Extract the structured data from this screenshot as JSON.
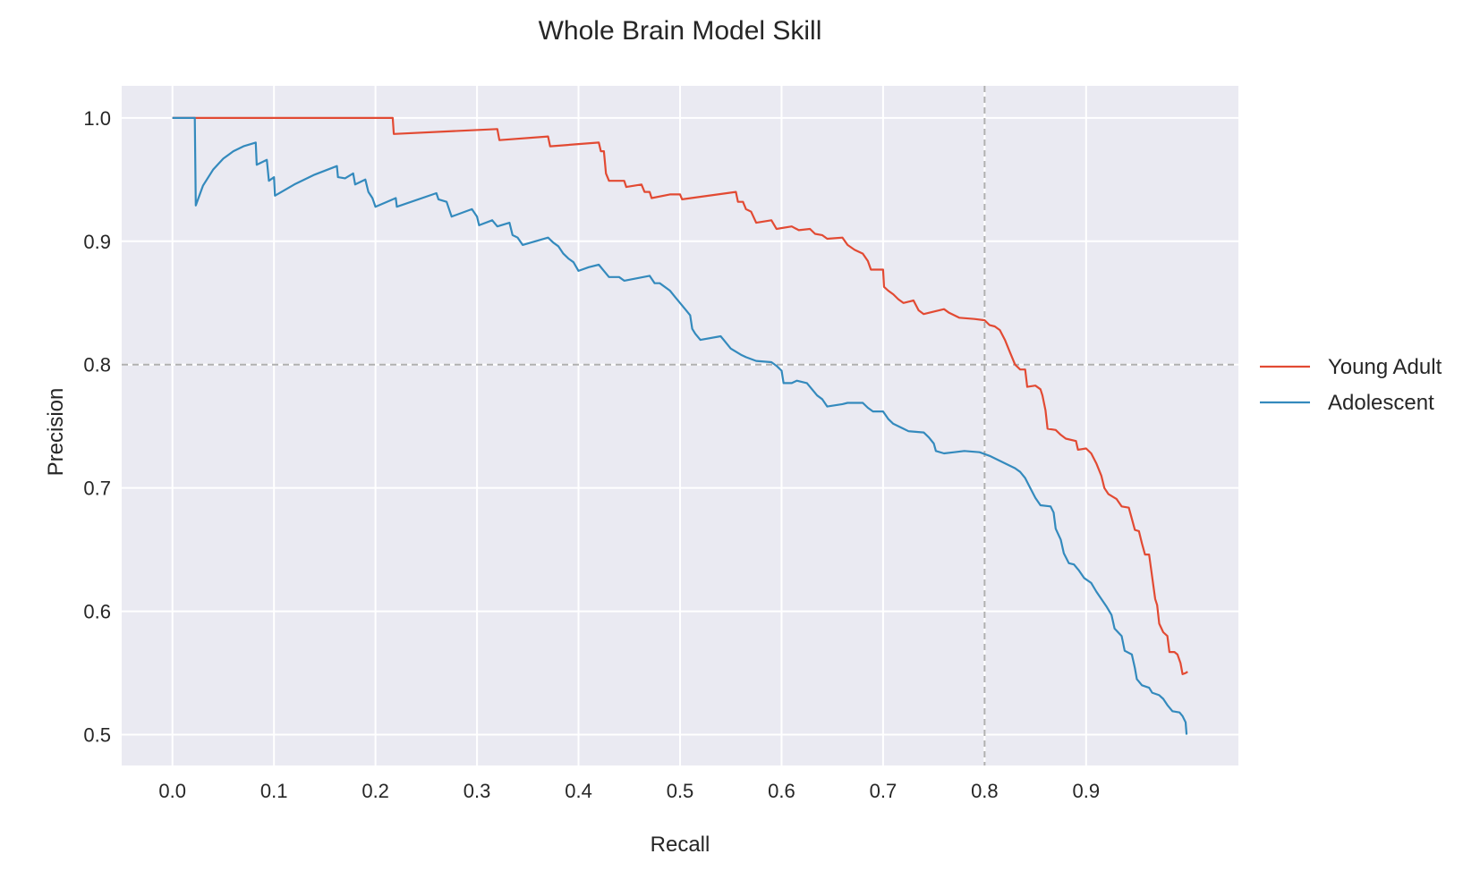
{
  "chart_data": {
    "type": "line",
    "title": "Whole Brain Model Skill",
    "xlabel": "Recall",
    "ylabel": "Precision",
    "xlim": [
      -0.05,
      1.05
    ],
    "ylim": [
      0.475,
      1.026
    ],
    "xticks": [
      0.0,
      0.1,
      0.2,
      0.3,
      0.4,
      0.5,
      0.6,
      0.7,
      0.8,
      0.9
    ],
    "xtick_labels": [
      "0.0",
      "0.1",
      "0.2",
      "0.3",
      "0.4",
      "0.5",
      "0.6",
      "0.7",
      "0.8",
      "0.9"
    ],
    "yticks": [
      0.5,
      0.6,
      0.7,
      0.8,
      0.9,
      1.0
    ],
    "ytick_labels": [
      "0.5",
      "0.6",
      "0.7",
      "0.8",
      "0.9",
      "1.0"
    ],
    "grid": true,
    "background": "#eaeaf2",
    "legend_position": "right",
    "reference_lines": [
      {
        "axis": "y",
        "value": 0.8,
        "style": "dashed",
        "color": "#b0b0b0"
      },
      {
        "axis": "x",
        "value": 0.8,
        "style": "dashed",
        "color": "#b0b0b0"
      }
    ],
    "series": [
      {
        "name": "Young Adult",
        "color": "#e24a33",
        "points": [
          [
            0.0,
            1.0
          ],
          [
            0.217,
            1.0
          ],
          [
            0.218,
            0.987
          ],
          [
            0.32,
            0.991
          ],
          [
            0.322,
            0.982
          ],
          [
            0.37,
            0.985
          ],
          [
            0.372,
            0.977
          ],
          [
            0.42,
            0.98
          ],
          [
            0.422,
            0.973
          ],
          [
            0.425,
            0.973
          ],
          [
            0.427,
            0.955
          ],
          [
            0.43,
            0.949
          ],
          [
            0.445,
            0.949
          ],
          [
            0.447,
            0.944
          ],
          [
            0.462,
            0.946
          ],
          [
            0.465,
            0.94
          ],
          [
            0.47,
            0.94
          ],
          [
            0.472,
            0.935
          ],
          [
            0.49,
            0.938
          ],
          [
            0.5,
            0.938
          ],
          [
            0.502,
            0.934
          ],
          [
            0.555,
            0.94
          ],
          [
            0.557,
            0.932
          ],
          [
            0.562,
            0.932
          ],
          [
            0.565,
            0.926
          ],
          [
            0.57,
            0.924
          ],
          [
            0.575,
            0.915
          ],
          [
            0.59,
            0.917
          ],
          [
            0.595,
            0.91
          ],
          [
            0.61,
            0.912
          ],
          [
            0.617,
            0.909
          ],
          [
            0.628,
            0.91
          ],
          [
            0.633,
            0.906
          ],
          [
            0.64,
            0.905
          ],
          [
            0.645,
            0.902
          ],
          [
            0.66,
            0.903
          ],
          [
            0.665,
            0.897
          ],
          [
            0.672,
            0.893
          ],
          [
            0.68,
            0.89
          ],
          [
            0.685,
            0.884
          ],
          [
            0.688,
            0.877
          ],
          [
            0.7,
            0.877
          ],
          [
            0.701,
            0.863
          ],
          [
            0.705,
            0.86
          ],
          [
            0.71,
            0.857
          ],
          [
            0.715,
            0.853
          ],
          [
            0.72,
            0.85
          ],
          [
            0.73,
            0.852
          ],
          [
            0.735,
            0.844
          ],
          [
            0.74,
            0.841
          ],
          [
            0.76,
            0.845
          ],
          [
            0.765,
            0.842
          ],
          [
            0.775,
            0.838
          ],
          [
            0.79,
            0.837
          ],
          [
            0.8,
            0.836
          ],
          [
            0.805,
            0.832
          ],
          [
            0.81,
            0.831
          ],
          [
            0.815,
            0.828
          ],
          [
            0.82,
            0.82
          ],
          [
            0.825,
            0.81
          ],
          [
            0.83,
            0.8
          ],
          [
            0.835,
            0.796
          ],
          [
            0.84,
            0.796
          ],
          [
            0.842,
            0.782
          ],
          [
            0.85,
            0.783
          ],
          [
            0.855,
            0.78
          ],
          [
            0.857,
            0.775
          ],
          [
            0.86,
            0.763
          ],
          [
            0.862,
            0.748
          ],
          [
            0.87,
            0.747
          ],
          [
            0.875,
            0.743
          ],
          [
            0.88,
            0.74
          ],
          [
            0.89,
            0.738
          ],
          [
            0.892,
            0.731
          ],
          [
            0.9,
            0.732
          ],
          [
            0.905,
            0.728
          ],
          [
            0.91,
            0.72
          ],
          [
            0.915,
            0.71
          ],
          [
            0.918,
            0.7
          ],
          [
            0.922,
            0.695
          ],
          [
            0.93,
            0.691
          ],
          [
            0.935,
            0.685
          ],
          [
            0.942,
            0.684
          ],
          [
            0.945,
            0.675
          ],
          [
            0.948,
            0.666
          ],
          [
            0.952,
            0.665
          ],
          [
            0.955,
            0.655
          ],
          [
            0.958,
            0.646
          ],
          [
            0.962,
            0.646
          ],
          [
            0.965,
            0.628
          ],
          [
            0.968,
            0.61
          ],
          [
            0.97,
            0.605
          ],
          [
            0.972,
            0.59
          ],
          [
            0.976,
            0.583
          ],
          [
            0.98,
            0.58
          ],
          [
            0.982,
            0.567
          ],
          [
            0.987,
            0.567
          ],
          [
            0.99,
            0.565
          ],
          [
            0.993,
            0.558
          ],
          [
            0.995,
            0.549
          ],
          [
            0.998,
            0.55
          ],
          [
            1.0,
            0.551
          ]
        ]
      },
      {
        "name": "Adolescent",
        "color": "#348abd",
        "points": [
          [
            0.0,
            1.0
          ],
          [
            0.022,
            1.0
          ],
          [
            0.023,
            0.929
          ],
          [
            0.03,
            0.945
          ],
          [
            0.04,
            0.958
          ],
          [
            0.05,
            0.967
          ],
          [
            0.06,
            0.973
          ],
          [
            0.07,
            0.977
          ],
          [
            0.082,
            0.98
          ],
          [
            0.083,
            0.962
          ],
          [
            0.093,
            0.966
          ],
          [
            0.095,
            0.949
          ],
          [
            0.1,
            0.952
          ],
          [
            0.101,
            0.937
          ],
          [
            0.12,
            0.946
          ],
          [
            0.14,
            0.954
          ],
          [
            0.162,
            0.961
          ],
          [
            0.163,
            0.952
          ],
          [
            0.17,
            0.951
          ],
          [
            0.178,
            0.955
          ],
          [
            0.18,
            0.946
          ],
          [
            0.19,
            0.95
          ],
          [
            0.193,
            0.94
          ],
          [
            0.197,
            0.935
          ],
          [
            0.2,
            0.928
          ],
          [
            0.22,
            0.935
          ],
          [
            0.221,
            0.928
          ],
          [
            0.26,
            0.939
          ],
          [
            0.262,
            0.934
          ],
          [
            0.27,
            0.932
          ],
          [
            0.275,
            0.92
          ],
          [
            0.295,
            0.926
          ],
          [
            0.3,
            0.92
          ],
          [
            0.302,
            0.913
          ],
          [
            0.315,
            0.917
          ],
          [
            0.32,
            0.912
          ],
          [
            0.332,
            0.915
          ],
          [
            0.335,
            0.905
          ],
          [
            0.34,
            0.903
          ],
          [
            0.345,
            0.897
          ],
          [
            0.37,
            0.903
          ],
          [
            0.375,
            0.899
          ],
          [
            0.38,
            0.896
          ],
          [
            0.385,
            0.89
          ],
          [
            0.39,
            0.886
          ],
          [
            0.395,
            0.883
          ],
          [
            0.4,
            0.876
          ],
          [
            0.41,
            0.879
          ],
          [
            0.42,
            0.881
          ],
          [
            0.425,
            0.876
          ],
          [
            0.43,
            0.871
          ],
          [
            0.44,
            0.871
          ],
          [
            0.445,
            0.868
          ],
          [
            0.47,
            0.872
          ],
          [
            0.475,
            0.866
          ],
          [
            0.48,
            0.866
          ],
          [
            0.49,
            0.86
          ],
          [
            0.495,
            0.855
          ],
          [
            0.5,
            0.85
          ],
          [
            0.505,
            0.845
          ],
          [
            0.51,
            0.84
          ],
          [
            0.512,
            0.829
          ],
          [
            0.515,
            0.825
          ],
          [
            0.52,
            0.82
          ],
          [
            0.54,
            0.823
          ],
          [
            0.545,
            0.818
          ],
          [
            0.55,
            0.813
          ],
          [
            0.56,
            0.808
          ],
          [
            0.565,
            0.806
          ],
          [
            0.575,
            0.803
          ],
          [
            0.59,
            0.802
          ],
          [
            0.595,
            0.799
          ],
          [
            0.6,
            0.795
          ],
          [
            0.602,
            0.785
          ],
          [
            0.61,
            0.785
          ],
          [
            0.615,
            0.787
          ],
          [
            0.625,
            0.785
          ],
          [
            0.63,
            0.78
          ],
          [
            0.635,
            0.775
          ],
          [
            0.64,
            0.772
          ],
          [
            0.645,
            0.766
          ],
          [
            0.66,
            0.768
          ],
          [
            0.665,
            0.769
          ],
          [
            0.68,
            0.769
          ],
          [
            0.685,
            0.765
          ],
          [
            0.69,
            0.762
          ],
          [
            0.7,
            0.762
          ],
          [
            0.705,
            0.756
          ],
          [
            0.71,
            0.752
          ],
          [
            0.72,
            0.748
          ],
          [
            0.725,
            0.746
          ],
          [
            0.74,
            0.745
          ],
          [
            0.745,
            0.741
          ],
          [
            0.75,
            0.736
          ],
          [
            0.752,
            0.73
          ],
          [
            0.76,
            0.728
          ],
          [
            0.77,
            0.729
          ],
          [
            0.78,
            0.73
          ],
          [
            0.795,
            0.729
          ],
          [
            0.805,
            0.726
          ],
          [
            0.82,
            0.72
          ],
          [
            0.83,
            0.716
          ],
          [
            0.835,
            0.713
          ],
          [
            0.84,
            0.708
          ],
          [
            0.845,
            0.7
          ],
          [
            0.85,
            0.692
          ],
          [
            0.855,
            0.686
          ],
          [
            0.865,
            0.685
          ],
          [
            0.868,
            0.68
          ],
          [
            0.87,
            0.667
          ],
          [
            0.875,
            0.658
          ],
          [
            0.878,
            0.647
          ],
          [
            0.883,
            0.639
          ],
          [
            0.888,
            0.638
          ],
          [
            0.893,
            0.633
          ],
          [
            0.898,
            0.627
          ],
          [
            0.905,
            0.623
          ],
          [
            0.91,
            0.616
          ],
          [
            0.915,
            0.61
          ],
          [
            0.92,
            0.604
          ],
          [
            0.925,
            0.597
          ],
          [
            0.928,
            0.586
          ],
          [
            0.935,
            0.58
          ],
          [
            0.938,
            0.568
          ],
          [
            0.945,
            0.565
          ],
          [
            0.948,
            0.554
          ],
          [
            0.95,
            0.545
          ],
          [
            0.955,
            0.54
          ],
          [
            0.962,
            0.538
          ],
          [
            0.965,
            0.534
          ],
          [
            0.972,
            0.532
          ],
          [
            0.976,
            0.529
          ],
          [
            0.98,
            0.524
          ],
          [
            0.985,
            0.519
          ],
          [
            0.992,
            0.518
          ],
          [
            0.995,
            0.515
          ],
          [
            0.998,
            0.51
          ],
          [
            0.999,
            0.5
          ]
        ]
      }
    ]
  }
}
